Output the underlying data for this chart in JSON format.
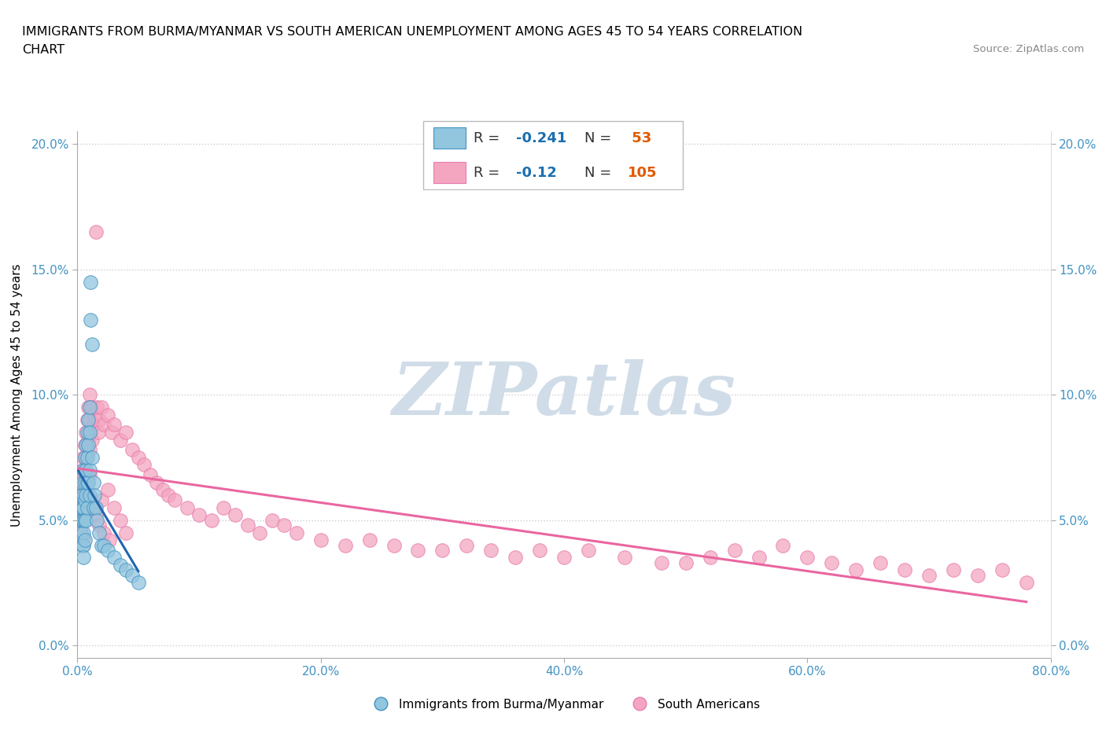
{
  "title_line1": "IMMIGRANTS FROM BURMA/MYANMAR VS SOUTH AMERICAN UNEMPLOYMENT AMONG AGES 45 TO 54 YEARS CORRELATION",
  "title_line2": "CHART",
  "source": "Source: ZipAtlas.com",
  "ylabel": "Unemployment Among Ages 45 to 54 years",
  "xmin": 0.0,
  "xmax": 0.8,
  "ymin": -0.005,
  "ymax": 0.205,
  "xticks": [
    0.0,
    0.2,
    0.4,
    0.6,
    0.8
  ],
  "xticklabels": [
    "0.0%",
    "20.0%",
    "40.0%",
    "60.0%",
    "80.0%"
  ],
  "yticks": [
    0.0,
    0.05,
    0.1,
    0.15,
    0.2
  ],
  "yticklabels": [
    "0.0%",
    "5.0%",
    "10.0%",
    "15.0%",
    "20.0%"
  ],
  "blue_color": "#92c5de",
  "pink_color": "#f4a6c0",
  "blue_edge_color": "#4393c3",
  "pink_edge_color": "#e87db0",
  "blue_line_color": "#2166ac",
  "pink_line_color": "#e966a0",
  "tick_color": "#4393c3",
  "blue_R": -0.241,
  "blue_N": 53,
  "pink_R": -0.12,
  "pink_N": 105,
  "legend_R_color": "#1a6faf",
  "legend_N_color": "#e05a00",
  "watermark_text": "ZIPatlas",
  "watermark_color": "#d0dde8",
  "grid_color": "#cccccc",
  "blue_x": [
    0.002,
    0.003,
    0.003,
    0.003,
    0.004,
    0.004,
    0.004,
    0.004,
    0.005,
    0.005,
    0.005,
    0.005,
    0.005,
    0.005,
    0.005,
    0.006,
    0.006,
    0.006,
    0.006,
    0.006,
    0.007,
    0.007,
    0.007,
    0.007,
    0.008,
    0.008,
    0.008,
    0.008,
    0.009,
    0.009,
    0.009,
    0.01,
    0.01,
    0.01,
    0.01,
    0.011,
    0.011,
    0.012,
    0.012,
    0.013,
    0.013,
    0.014,
    0.015,
    0.016,
    0.018,
    0.02,
    0.022,
    0.025,
    0.03,
    0.035,
    0.04,
    0.045,
    0.05
  ],
  "blue_y": [
    0.055,
    0.06,
    0.05,
    0.045,
    0.065,
    0.055,
    0.05,
    0.04,
    0.07,
    0.06,
    0.055,
    0.05,
    0.045,
    0.04,
    0.035,
    0.075,
    0.065,
    0.058,
    0.05,
    0.042,
    0.08,
    0.07,
    0.06,
    0.05,
    0.085,
    0.075,
    0.065,
    0.055,
    0.09,
    0.08,
    0.065,
    0.095,
    0.085,
    0.07,
    0.06,
    0.145,
    0.13,
    0.12,
    0.075,
    0.065,
    0.055,
    0.06,
    0.055,
    0.05,
    0.045,
    0.04,
    0.04,
    0.038,
    0.035,
    0.032,
    0.03,
    0.028,
    0.025
  ],
  "pink_x": [
    0.002,
    0.002,
    0.003,
    0.003,
    0.003,
    0.004,
    0.004,
    0.004,
    0.005,
    0.005,
    0.005,
    0.005,
    0.005,
    0.006,
    0.006,
    0.006,
    0.006,
    0.007,
    0.007,
    0.007,
    0.008,
    0.008,
    0.008,
    0.009,
    0.009,
    0.01,
    0.01,
    0.01,
    0.01,
    0.011,
    0.011,
    0.012,
    0.012,
    0.013,
    0.014,
    0.015,
    0.016,
    0.017,
    0.018,
    0.02,
    0.022,
    0.025,
    0.028,
    0.03,
    0.035,
    0.04,
    0.045,
    0.05,
    0.055,
    0.06,
    0.065,
    0.07,
    0.075,
    0.08,
    0.09,
    0.1,
    0.11,
    0.12,
    0.13,
    0.14,
    0.15,
    0.16,
    0.17,
    0.18,
    0.2,
    0.22,
    0.24,
    0.26,
    0.28,
    0.3,
    0.32,
    0.34,
    0.36,
    0.38,
    0.4,
    0.42,
    0.45,
    0.48,
    0.5,
    0.52,
    0.54,
    0.56,
    0.58,
    0.6,
    0.62,
    0.64,
    0.66,
    0.68,
    0.7,
    0.72,
    0.74,
    0.76,
    0.78,
    0.02,
    0.025,
    0.03,
    0.035,
    0.04,
    0.008,
    0.01,
    0.012,
    0.015,
    0.018,
    0.022,
    0.026
  ],
  "pink_y": [
    0.06,
    0.05,
    0.065,
    0.055,
    0.048,
    0.07,
    0.06,
    0.052,
    0.075,
    0.065,
    0.058,
    0.05,
    0.043,
    0.08,
    0.07,
    0.062,
    0.052,
    0.085,
    0.075,
    0.065,
    0.09,
    0.08,
    0.068,
    0.095,
    0.082,
    0.1,
    0.09,
    0.078,
    0.068,
    0.095,
    0.085,
    0.095,
    0.082,
    0.088,
    0.092,
    0.165,
    0.095,
    0.085,
    0.09,
    0.095,
    0.088,
    0.092,
    0.085,
    0.088,
    0.082,
    0.085,
    0.078,
    0.075,
    0.072,
    0.068,
    0.065,
    0.062,
    0.06,
    0.058,
    0.055,
    0.052,
    0.05,
    0.055,
    0.052,
    0.048,
    0.045,
    0.05,
    0.048,
    0.045,
    0.042,
    0.04,
    0.042,
    0.04,
    0.038,
    0.038,
    0.04,
    0.038,
    0.035,
    0.038,
    0.035,
    0.038,
    0.035,
    0.033,
    0.033,
    0.035,
    0.038,
    0.035,
    0.04,
    0.035,
    0.033,
    0.03,
    0.033,
    0.03,
    0.028,
    0.03,
    0.028,
    0.03,
    0.025,
    0.058,
    0.062,
    0.055,
    0.05,
    0.045,
    0.06,
    0.058,
    0.055,
    0.052,
    0.048,
    0.045,
    0.042
  ]
}
